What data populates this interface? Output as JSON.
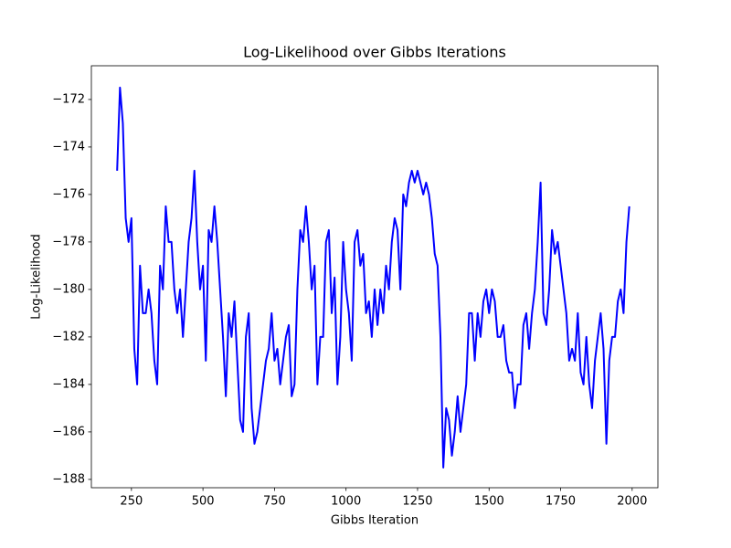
{
  "chart_data": {
    "type": "line",
    "title": "Log-Likelihood over Gibbs Iterations",
    "x_label": "Gibbs Iteration",
    "y_label": "Log-Likelihood",
    "x": [
      200,
      210,
      220,
      230,
      240,
      250,
      260,
      270,
      280,
      290,
      300,
      310,
      320,
      330,
      340,
      350,
      360,
      370,
      380,
      390,
      400,
      410,
      420,
      430,
      440,
      450,
      460,
      470,
      480,
      490,
      500,
      510,
      520,
      530,
      540,
      550,
      560,
      570,
      580,
      590,
      600,
      610,
      620,
      630,
      640,
      650,
      660,
      670,
      680,
      690,
      700,
      710,
      720,
      730,
      740,
      750,
      760,
      770,
      780,
      790,
      800,
      810,
      820,
      830,
      840,
      850,
      860,
      870,
      880,
      890,
      900,
      910,
      920,
      930,
      940,
      950,
      960,
      970,
      980,
      990,
      1000,
      1010,
      1020,
      1030,
      1040,
      1050,
      1060,
      1070,
      1080,
      1090,
      1100,
      1110,
      1120,
      1130,
      1140,
      1150,
      1160,
      1170,
      1180,
      1190,
      1200,
      1210,
      1220,
      1230,
      1240,
      1250,
      1260,
      1270,
      1280,
      1290,
      1300,
      1310,
      1320,
      1330,
      1340,
      1350,
      1360,
      1370,
      1380,
      1390,
      1400,
      1410,
      1420,
      1430,
      1440,
      1450,
      1460,
      1470,
      1480,
      1490,
      1500,
      1510,
      1520,
      1530,
      1540,
      1550,
      1560,
      1570,
      1580,
      1590,
      1600,
      1610,
      1620,
      1630,
      1640,
      1650,
      1660,
      1670,
      1680,
      1690,
      1700,
      1710,
      1720,
      1730,
      1740,
      1750,
      1760,
      1770,
      1780,
      1790,
      1800,
      1810,
      1820,
      1830,
      1840,
      1850,
      1860,
      1870,
      1880,
      1890,
      1900,
      1910,
      1920,
      1930,
      1940,
      1950,
      1960,
      1970,
      1980,
      1990
    ],
    "series": [
      {
        "color": "#0000ff",
        "values": [
          -175,
          -171.5,
          -173,
          -177,
          -178,
          -177,
          -182.5,
          -184,
          -179,
          -181,
          -181,
          -180,
          -181,
          -183,
          -184,
          -179,
          -180,
          -176.5,
          -178,
          -178,
          -180,
          -181,
          -180,
          -182,
          -180,
          -178,
          -177,
          -175,
          -178,
          -180,
          -179,
          -183,
          -177.5,
          -178,
          -176.5,
          -178,
          -180,
          -182,
          -184.5,
          -181,
          -182,
          -180.5,
          -183,
          -185.5,
          -186,
          -182,
          -181,
          -185,
          -186.5,
          -186,
          -185,
          -184,
          -183,
          -182.5,
          -181,
          -183,
          -182.5,
          -184,
          -183,
          -182,
          -181.5,
          -184.5,
          -184,
          -180,
          -177.5,
          -178,
          -176.5,
          -178,
          -180,
          -179,
          -184,
          -182,
          -182,
          -178,
          -177.5,
          -181,
          -179.5,
          -184,
          -182,
          -178,
          -180,
          -181,
          -183,
          -178,
          -177.5,
          -179,
          -178.5,
          -181,
          -180.5,
          -182,
          -180,
          -181.5,
          -180,
          -181,
          -179,
          -180,
          -178,
          -177,
          -177.5,
          -180,
          -176,
          -176.5,
          -175.5,
          -175,
          -175.5,
          -175,
          -175.5,
          -176,
          -175.5,
          -176,
          -177,
          -178.5,
          -179,
          -182,
          -187.5,
          -185,
          -185.5,
          -187,
          -186,
          -184.5,
          -186,
          -185,
          -184,
          -181,
          -181,
          -183,
          -181,
          -182,
          -180.5,
          -180,
          -181,
          -180,
          -180.5,
          -182,
          -182,
          -181.5,
          -183,
          -183.5,
          -183.5,
          -185,
          -184,
          -184,
          -181.5,
          -181,
          -182.5,
          -181,
          -180,
          -178,
          -175.5,
          -181,
          -181.5,
          -180,
          -177.5,
          -178.5,
          -178,
          -179,
          -180,
          -181,
          -183,
          -182.5,
          -183,
          -181,
          -183.5,
          -184,
          -182,
          -184,
          -185,
          -183,
          -182,
          -181,
          -182.5,
          -186.5,
          -183,
          -182,
          -182,
          -180.5,
          -180,
          -181,
          -178,
          -176.5
        ]
      }
    ],
    "xlim": [
      110,
      2090
    ],
    "ylim": [
      -188.35,
      -170.58
    ],
    "xticks": [
      250,
      500,
      750,
      1000,
      1250,
      1500,
      1750,
      2000
    ],
    "yticks": [
      {
        "value": -188,
        "label": "−188"
      },
      {
        "value": -186,
        "label": "−186"
      },
      {
        "value": -184,
        "label": "−184"
      },
      {
        "value": -182,
        "label": "−182"
      },
      {
        "value": -180,
        "label": "−180"
      },
      {
        "value": -178,
        "label": "−178"
      },
      {
        "value": -176,
        "label": "−176"
      },
      {
        "value": -174,
        "label": "−174"
      },
      {
        "value": -172,
        "label": "−172"
      }
    ],
    "grid": false
  }
}
